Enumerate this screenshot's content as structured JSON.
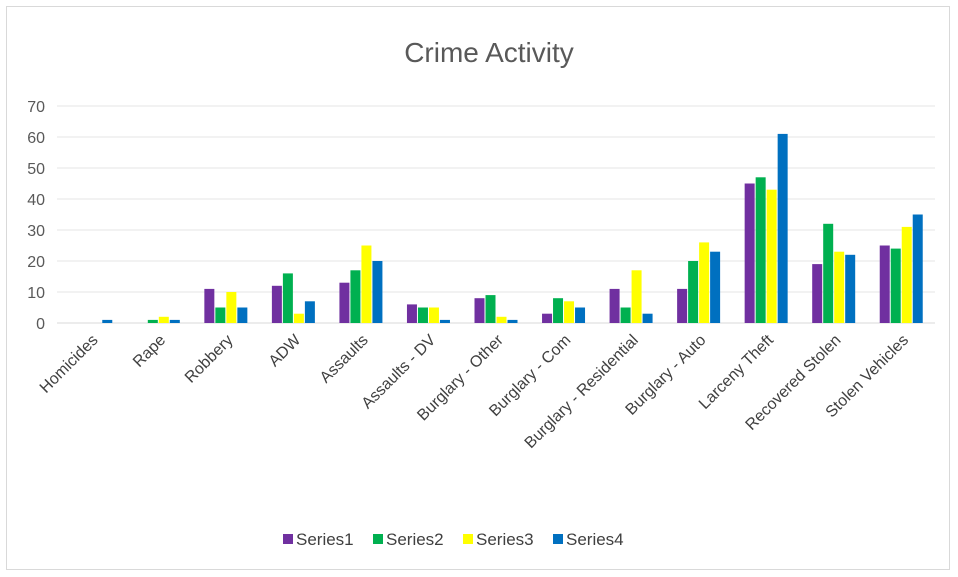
{
  "chart_data": {
    "type": "bar",
    "title": "Crime Activity",
    "xlabel": "",
    "ylabel": "",
    "ylim": [
      0,
      70
    ],
    "yticks": [
      0,
      10,
      20,
      30,
      40,
      50,
      60,
      70
    ],
    "grid": true,
    "legend": "bottom",
    "categories": [
      "Homicides",
      "Rape",
      "Robbery",
      "ADW",
      "Assaults",
      "Assaults - DV",
      "Burglary - Other",
      "Burglary - Com",
      "Burglary - Residential",
      "Burglary - Auto",
      "Larceny Theft",
      "Recovered Stolen",
      "Stolen Vehicles"
    ],
    "series": [
      {
        "name": "Series1",
        "color": "#7030a0",
        "values": [
          0,
          0,
          11,
          12,
          13,
          6,
          8,
          3,
          11,
          11,
          45,
          19,
          25
        ]
      },
      {
        "name": "Series2",
        "color": "#00b050",
        "values": [
          0,
          1,
          5,
          16,
          17,
          5,
          9,
          8,
          5,
          20,
          47,
          32,
          24
        ]
      },
      {
        "name": "Series3",
        "color": "#ffff00",
        "values": [
          0,
          2,
          10,
          3,
          25,
          5,
          2,
          7,
          17,
          26,
          43,
          23,
          31
        ]
      },
      {
        "name": "Series4",
        "color": "#0070c0",
        "values": [
          1,
          1,
          5,
          7,
          20,
          1,
          1,
          5,
          3,
          23,
          61,
          22,
          35
        ]
      }
    ]
  }
}
